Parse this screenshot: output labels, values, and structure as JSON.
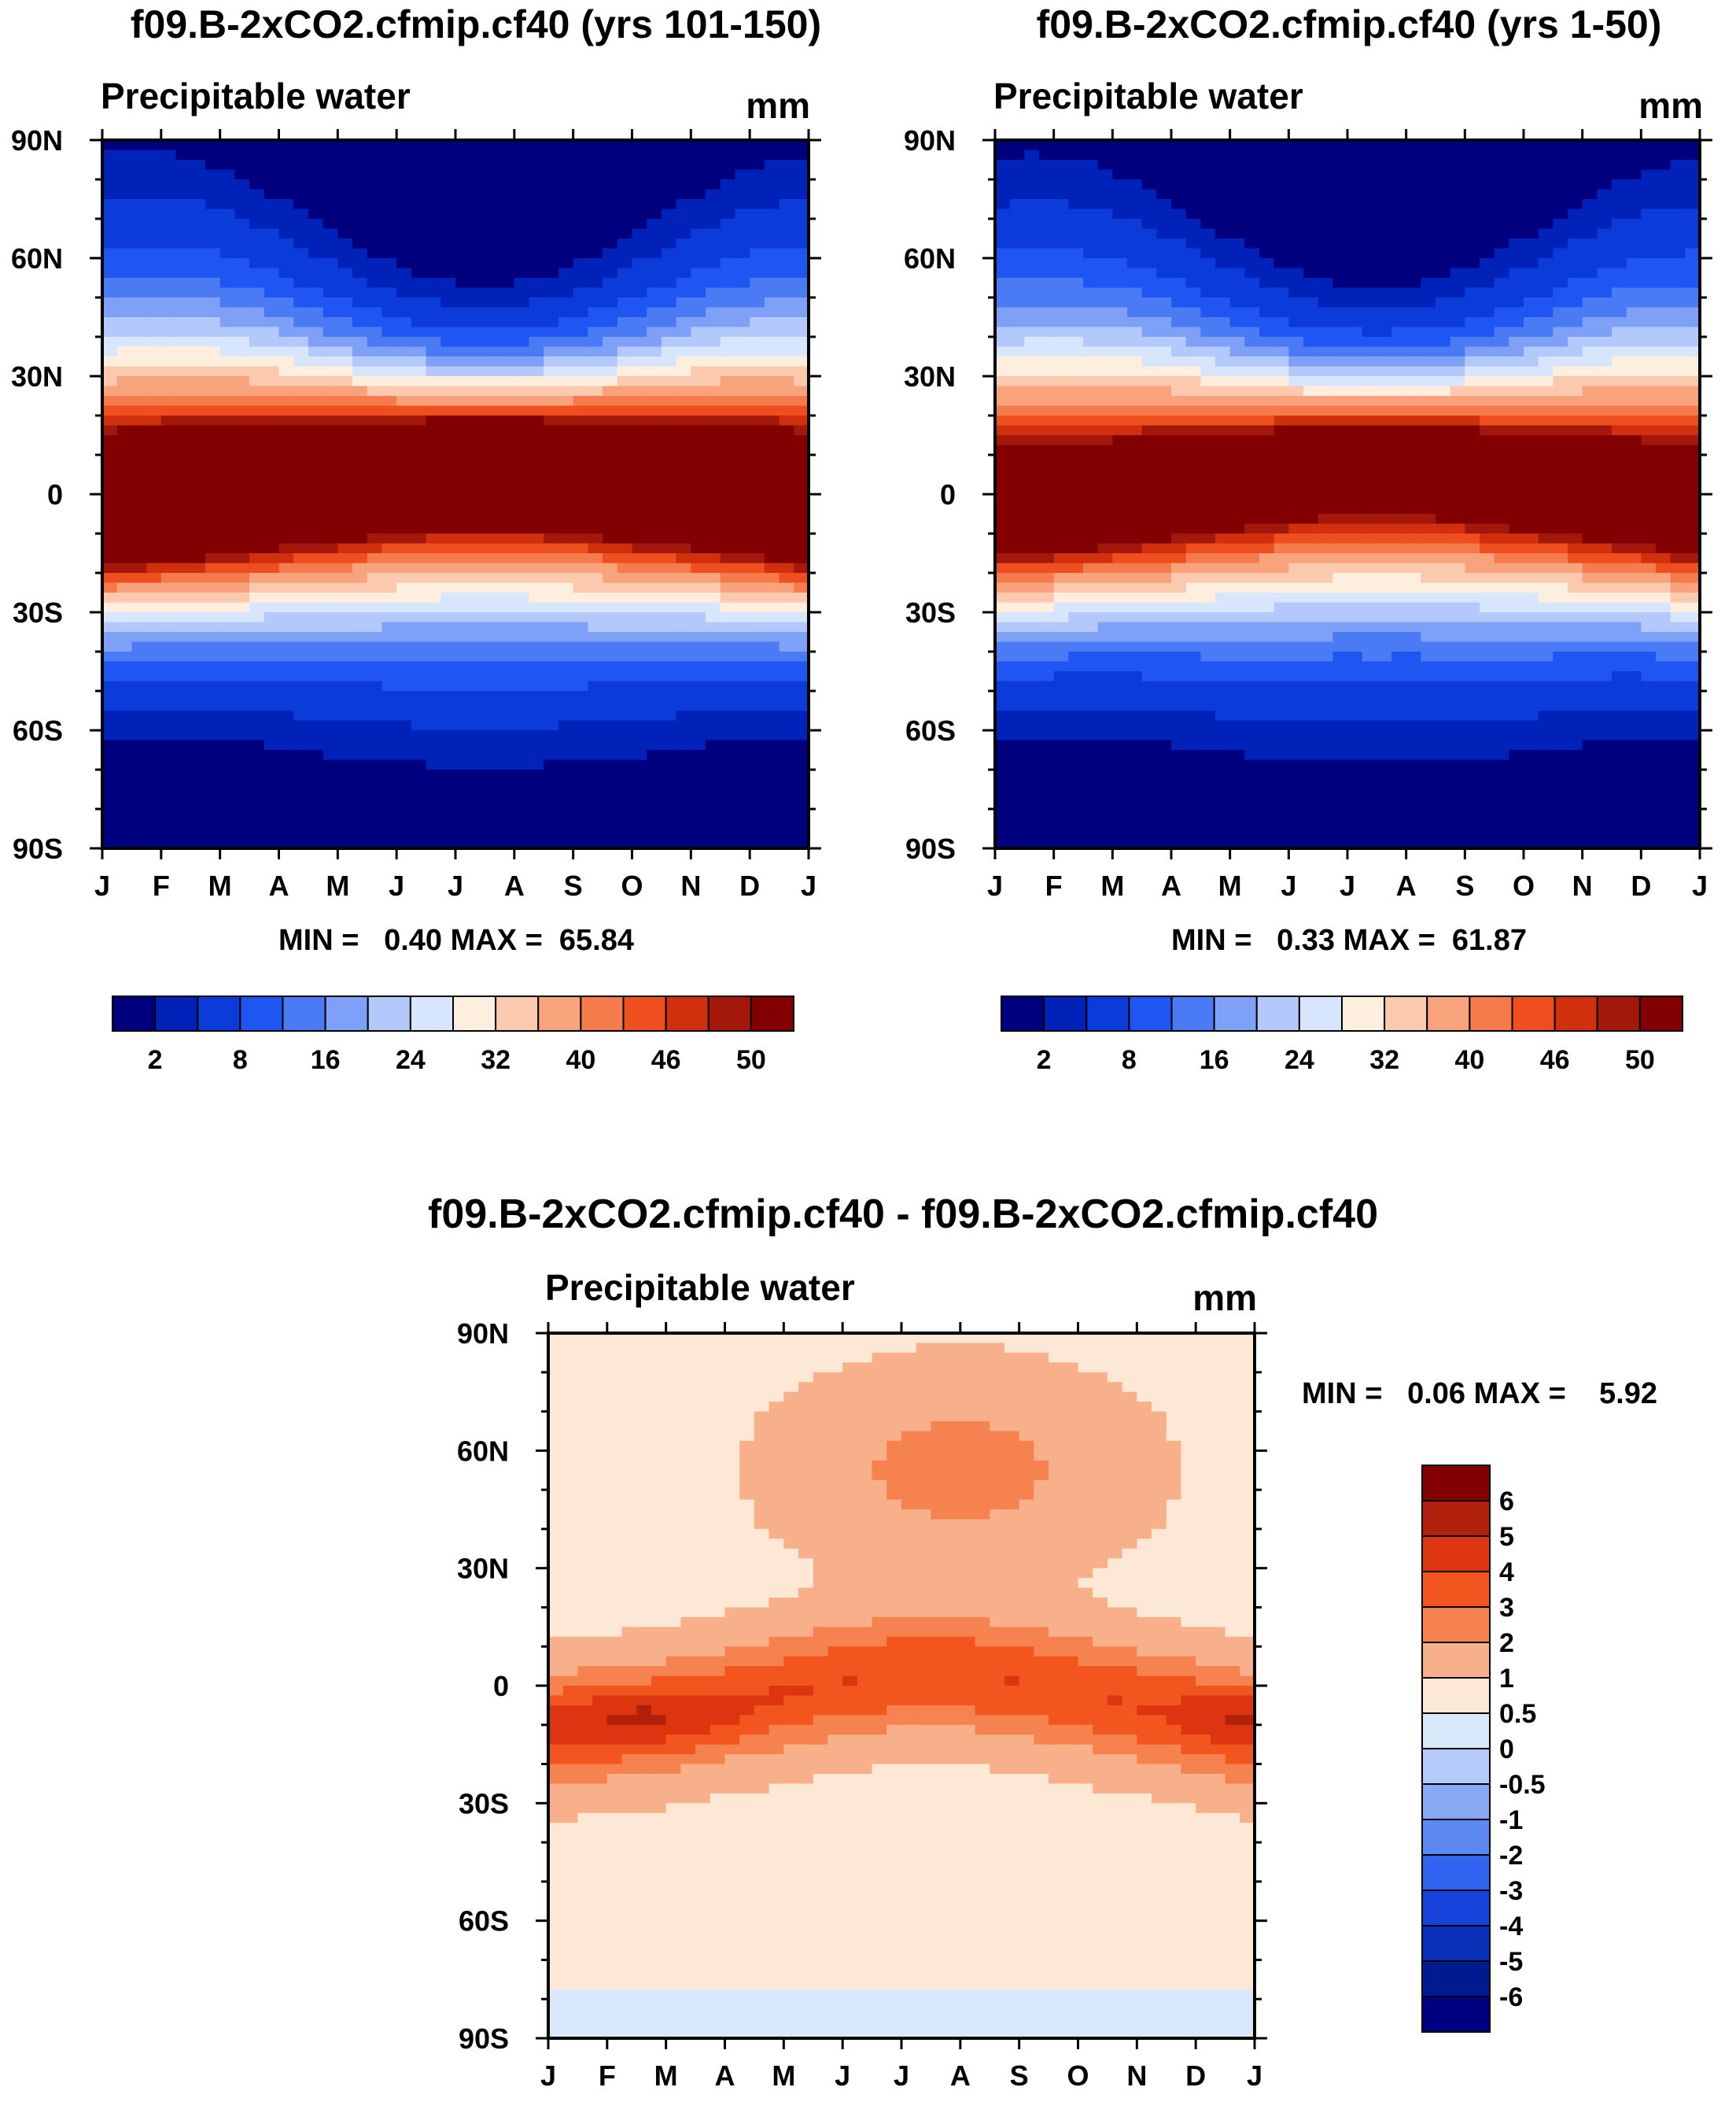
{
  "chart_data": [
    {
      "type": "heatmap",
      "title": "f09.B-2xCO2.cfmip.cf40 (yrs 101-150)",
      "subtitle": "Precipitable water",
      "units": "mm",
      "min_max_text": "MIN =   0.40 MAX =  65.84",
      "min": 0.4,
      "max": 65.84,
      "x_tick_labels": [
        "J",
        "F",
        "M",
        "A",
        "M",
        "J",
        "J",
        "A",
        "S",
        "O",
        "N",
        "D",
        "J"
      ],
      "y_tick_labels": [
        "90N",
        "60N",
        "30N",
        "0",
        "30S",
        "60S",
        "90S"
      ],
      "y_ticks": [
        90,
        60,
        30,
        0,
        -30,
        -60,
        -90
      ],
      "ylim": [
        -90,
        90
      ],
      "itcz_lat": [
        -5,
        -4,
        -2,
        1,
        4,
        7,
        9,
        9,
        7,
        4,
        1,
        -2,
        -5
      ],
      "scale": 1.0,
      "colorbar": {
        "orientation": "horizontal",
        "colors": [
          "#00007f",
          "#0022b8",
          "#0b3bd8",
          "#1f55f0",
          "#4a7bf5",
          "#7fa0f7",
          "#b3c8fb",
          "#d7e6fc",
          "#fdeedd",
          "#fbcaae",
          "#f8a37c",
          "#f57a4c",
          "#ef4e1f",
          "#d0300d",
          "#a4180b",
          "#820001"
        ],
        "labels": [
          "2",
          "8",
          "16",
          "24",
          "32",
          "40",
          "46",
          "50"
        ]
      }
    },
    {
      "type": "heatmap",
      "title": "f09.B-2xCO2.cfmip.cf40 (yrs 1-50)",
      "subtitle": "Precipitable water",
      "units": "mm",
      "min_max_text": "MIN =   0.33 MAX =  61.87",
      "min": 0.33,
      "max": 61.87,
      "x_tick_labels": [
        "J",
        "F",
        "M",
        "A",
        "M",
        "J",
        "J",
        "A",
        "S",
        "O",
        "N",
        "D",
        "J"
      ],
      "y_tick_labels": [
        "90N",
        "60N",
        "30N",
        "0",
        "30S",
        "60S",
        "90S"
      ],
      "y_ticks": [
        90,
        60,
        30,
        0,
        -30,
        -60,
        -90
      ],
      "ylim": [
        -90,
        90
      ],
      "itcz_lat": [
        -5,
        -4,
        -2,
        1,
        4,
        7,
        9,
        9,
        7,
        4,
        1,
        -2,
        -5
      ],
      "scale": 0.93,
      "colorbar": {
        "orientation": "horizontal",
        "colors": [
          "#00007f",
          "#0022b8",
          "#0b3bd8",
          "#1f55f0",
          "#4a7bf5",
          "#7fa0f7",
          "#b3c8fb",
          "#d7e6fc",
          "#fdeedd",
          "#fbcaae",
          "#f8a37c",
          "#f57a4c",
          "#ef4e1f",
          "#d0300d",
          "#a4180b",
          "#820001"
        ],
        "labels": [
          "2",
          "8",
          "16",
          "24",
          "32",
          "40",
          "46",
          "50"
        ]
      }
    },
    {
      "type": "heatmap",
      "title": "f09.B-2xCO2.cfmip.cf40 - f09.B-2xCO2.cfmip.cf40",
      "subtitle": "Precipitable water",
      "units": "mm",
      "min_max_text": "MIN =   0.06 MAX =    5.92",
      "min": 0.06,
      "max": 5.92,
      "x_tick_labels": [
        "J",
        "F",
        "M",
        "A",
        "M",
        "J",
        "J",
        "A",
        "S",
        "O",
        "N",
        "D",
        "J"
      ],
      "y_tick_labels": [
        "90N",
        "60N",
        "30N",
        "0",
        "30S",
        "60S",
        "90S"
      ],
      "y_ticks": [
        90,
        60,
        30,
        0,
        -30,
        -60,
        -90
      ],
      "ylim": [
        -90,
        90
      ],
      "itcz_lat": [
        -5,
        -4,
        -2,
        1,
        4,
        7,
        9,
        9,
        7,
        4,
        1,
        -2,
        -5
      ],
      "colorbar": {
        "orientation": "vertical",
        "colors": [
          "#820001",
          "#b0200a",
          "#dc3510",
          "#f2561e",
          "#f6824f",
          "#f8b08a",
          "#fde8d6",
          "#dae8fb",
          "#b5cbfb",
          "#89a9f5",
          "#5c88f2",
          "#3063ee",
          "#1543dc",
          "#0a2fb8",
          "#001a90",
          "#000080"
        ],
        "labels": [
          "6",
          "5",
          "4",
          "3",
          "2",
          "1",
          "0.5",
          "0",
          "-0.5",
          "-1",
          "-2",
          "-3",
          "-4",
          "-5",
          "-6"
        ]
      }
    }
  ]
}
